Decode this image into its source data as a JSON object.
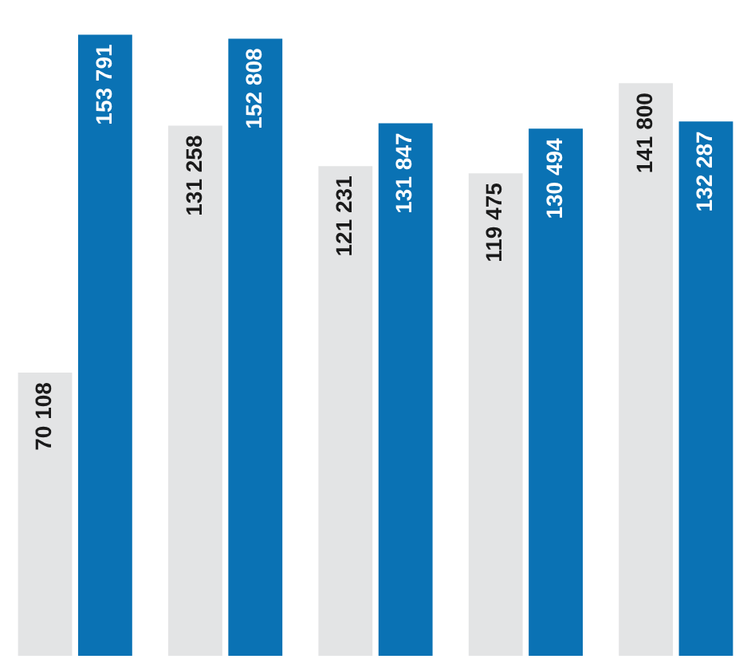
{
  "chart_data": {
    "type": "bar",
    "categories": [
      null,
      null,
      null,
      null,
      null
    ],
    "series": [
      {
        "color": "#e3e4e5",
        "values": [
          70108,
          131258,
          121231,
          119475,
          141800
        ],
        "value_labels": [
          "70 108",
          "131 258",
          "121 231",
          "119 475",
          "141 800"
        ]
      },
      {
        "color": "#0a72b4",
        "values": [
          153791,
          152808,
          131847,
          130494,
          132287
        ],
        "value_labels": [
          "153 791",
          "152 808",
          "131 847",
          "130 494",
          "132 287"
        ]
      }
    ],
    "legend": false,
    "tick_labels": false
  }
}
